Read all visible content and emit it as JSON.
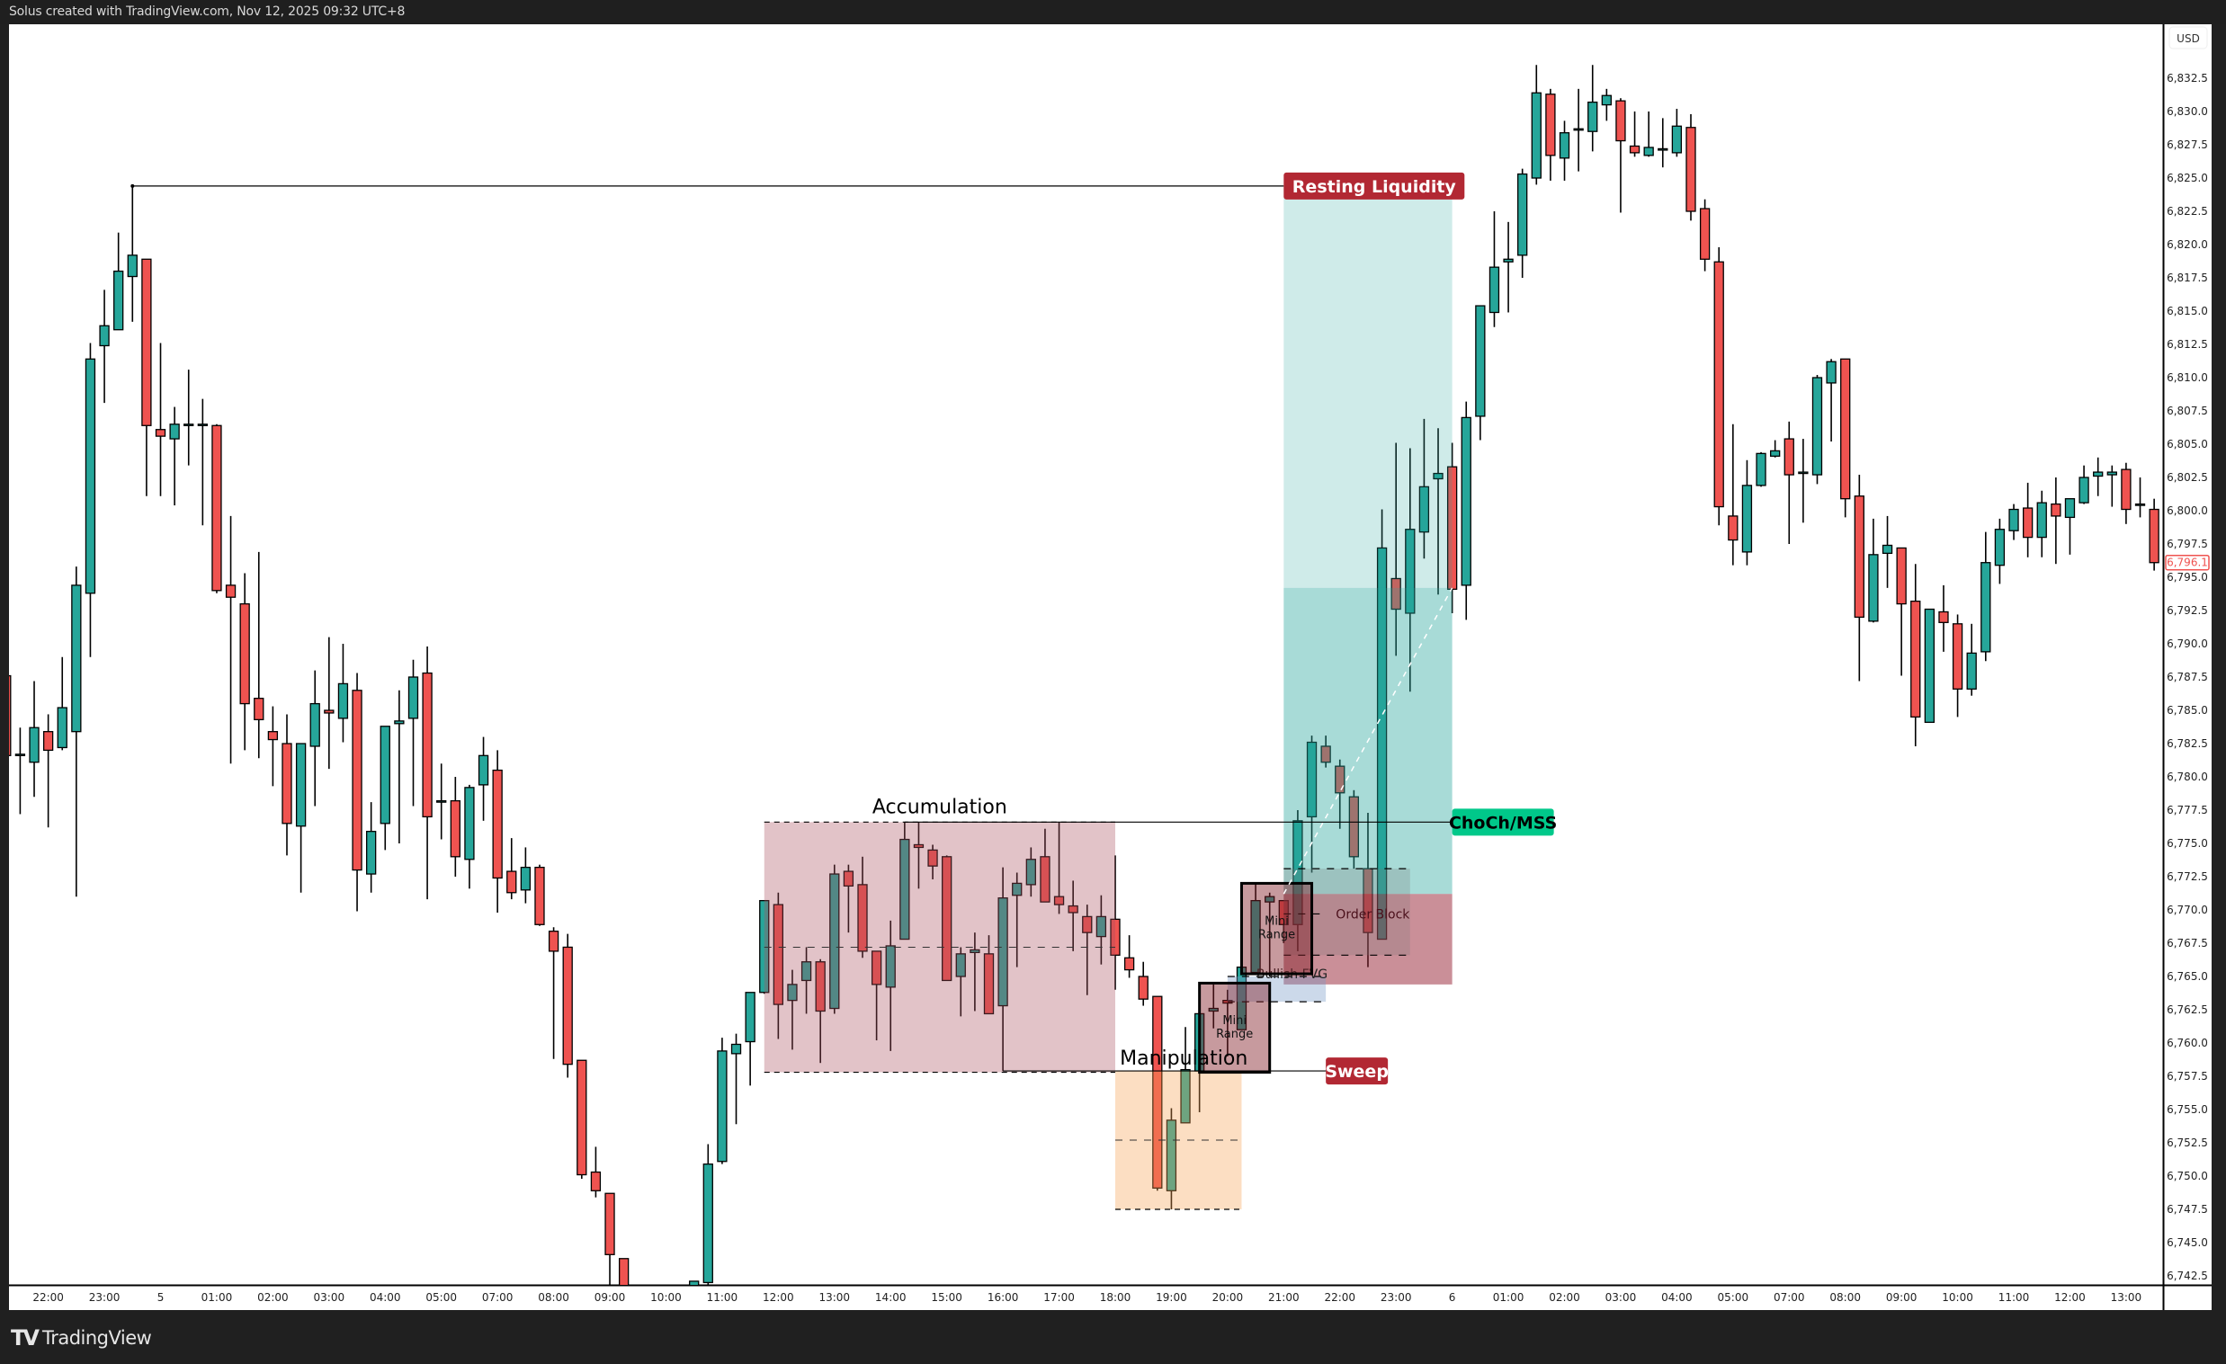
{
  "header": {
    "caption": "Solus created with TradingView.com, Nov 12, 2025 09:32 UTC+8"
  },
  "branding": {
    "logo_mark": "17",
    "logo_text": "TradingView"
  },
  "colors": {
    "up": "#26a69a",
    "down": "#ef5350",
    "wick": "#000000",
    "resting_liquidity": "#b22833",
    "sweep": "#b22833",
    "choch": "#00c88a",
    "accumulation": "#ab505f",
    "manipulation": "#f5a050",
    "target": "#26a69a",
    "order_block": "#962032",
    "mini_range": "#822028",
    "fvg": "#789cc8"
  },
  "chart_data": {
    "type": "candlestick",
    "currency": "USD",
    "ylim": [
      6742.5,
      6832.5
    ],
    "y_ticks": [
      6832.5,
      6830.0,
      6827.5,
      6825.0,
      6822.5,
      6820.0,
      6817.5,
      6815.0,
      6812.5,
      6810.0,
      6807.5,
      6805.0,
      6802.5,
      6800.0,
      6797.5,
      6795.0,
      6792.5,
      6790.0,
      6787.5,
      6785.0,
      6782.5,
      6780.0,
      6777.5,
      6775.0,
      6772.5,
      6770.0,
      6767.5,
      6765.0,
      6762.5,
      6760.0,
      6757.5,
      6755.0,
      6752.5,
      6750.0,
      6747.5,
      6745.0,
      6742.5
    ],
    "last_price": "6,796.1",
    "x_ticks": [
      {
        "label": "22:00",
        "index": 3
      },
      {
        "label": "23:00",
        "index": 7
      },
      {
        "label": "5",
        "index": 11
      },
      {
        "label": "01:00",
        "index": 15
      },
      {
        "label": "02:00",
        "index": 19
      },
      {
        "label": "03:00",
        "index": 23
      },
      {
        "label": "04:00",
        "index": 27
      },
      {
        "label": "05:00",
        "index": 31
      },
      {
        "label": "07:00",
        "index": 35
      },
      {
        "label": "08:00",
        "index": 39
      },
      {
        "label": "09:00",
        "index": 43
      },
      {
        "label": "10:00",
        "index": 47
      },
      {
        "label": "11:00",
        "index": 51
      },
      {
        "label": "12:00",
        "index": 55
      },
      {
        "label": "13:00",
        "index": 59
      },
      {
        "label": "14:00",
        "index": 63
      },
      {
        "label": "15:00",
        "index": 67
      },
      {
        "label": "16:00",
        "index": 71
      },
      {
        "label": "17:00",
        "index": 75
      },
      {
        "label": "18:00",
        "index": 79
      },
      {
        "label": "19:00",
        "index": 83
      },
      {
        "label": "20:00",
        "index": 87
      },
      {
        "label": "21:00",
        "index": 91
      },
      {
        "label": "22:00",
        "index": 95
      },
      {
        "label": "23:00",
        "index": 99
      },
      {
        "label": "6",
        "index": 103
      },
      {
        "label": "01:00",
        "index": 107
      },
      {
        "label": "02:00",
        "index": 111
      },
      {
        "label": "03:00",
        "index": 115
      },
      {
        "label": "04:00",
        "index": 119
      },
      {
        "label": "05:00",
        "index": 123
      },
      {
        "label": "07:00",
        "index": 127
      },
      {
        "label": "08:00",
        "index": 131
      },
      {
        "label": "09:00",
        "index": 135
      },
      {
        "label": "10:00",
        "index": 139
      },
      {
        "label": "11:00",
        "index": 143
      },
      {
        "label": "12:00",
        "index": 147
      },
      {
        "label": "13:00",
        "index": 151
      }
    ],
    "ohlc_fields": [
      "open",
      "high",
      "low",
      "close"
    ],
    "candles": [
      [
        6787.6,
        6787.6,
        6781.6,
        6781.6
      ],
      [
        6781.7,
        6783.7,
        6777.2,
        6781.7
      ],
      [
        6781.1,
        6787.2,
        6778.5,
        6783.7
      ],
      [
        6783.4,
        6784.7,
        6776.2,
        6782.0
      ],
      [
        6782.2,
        6789.0,
        6782.0,
        6785.2
      ],
      [
        6783.4,
        6795.8,
        6771.0,
        6794.4
      ],
      [
        6793.8,
        6812.6,
        6789.0,
        6811.4
      ],
      [
        6812.4,
        6816.6,
        6808.1,
        6813.9
      ],
      [
        6813.6,
        6820.9,
        6813.6,
        6818.0
      ],
      [
        6817.6,
        6824.4,
        6814.2,
        6819.2
      ],
      [
        6818.9,
        6818.9,
        6801.1,
        6806.4
      ],
      [
        6806.1,
        6812.6,
        6801.1,
        6805.6
      ],
      [
        6805.4,
        6807.8,
        6800.4,
        6806.5
      ],
      [
        6806.5,
        6810.6,
        6803.4,
        6806.5
      ],
      [
        6806.5,
        6808.4,
        6798.9,
        6806.5
      ],
      [
        6806.4,
        6806.5,
        6793.8,
        6794.0
      ],
      [
        6794.4,
        6799.6,
        6781.0,
        6793.5
      ],
      [
        6793.0,
        6795.3,
        6782.0,
        6785.5
      ],
      [
        6785.9,
        6796.9,
        6781.4,
        6784.3
      ],
      [
        6783.4,
        6785.3,
        6779.3,
        6782.8
      ],
      [
        6782.5,
        6784.7,
        6774.1,
        6776.5
      ],
      [
        6776.3,
        6782.5,
        6771.3,
        6782.5
      ],
      [
        6782.3,
        6788.0,
        6777.8,
        6785.5
      ],
      [
        6785.0,
        6790.5,
        6780.6,
        6784.8
      ],
      [
        6784.4,
        6790.0,
        6782.6,
        6787.0
      ],
      [
        6786.5,
        6787.8,
        6769.9,
        6773.0
      ],
      [
        6772.7,
        6778.1,
        6771.3,
        6775.9
      ],
      [
        6776.5,
        6783.8,
        6774.5,
        6783.8
      ],
      [
        6784.0,
        6786.5,
        6775.0,
        6784.2
      ],
      [
        6784.4,
        6788.8,
        6777.8,
        6787.5
      ],
      [
        6787.8,
        6789.8,
        6770.8,
        6777.0
      ],
      [
        6778.2,
        6781.0,
        6775.3,
        6778.2
      ],
      [
        6778.2,
        6780.0,
        6772.5,
        6774.0
      ],
      [
        6773.8,
        6779.4,
        6771.6,
        6779.2
      ],
      [
        6779.4,
        6783.0,
        6776.7,
        6781.6
      ],
      [
        6780.5,
        6782.0,
        6769.8,
        6772.4
      ],
      [
        6772.9,
        6775.4,
        6770.8,
        6771.3
      ],
      [
        6771.5,
        6774.7,
        6770.5,
        6773.2
      ],
      [
        6773.2,
        6773.4,
        6768.8,
        6768.9
      ],
      [
        6768.4,
        6768.7,
        6758.8,
        6766.9
      ],
      [
        6767.2,
        6768.2,
        6757.4,
        6758.4
      ],
      [
        6758.7,
        6758.7,
        6749.8,
        6750.1
      ],
      [
        6750.3,
        6752.2,
        6748.4,
        6748.9
      ],
      [
        6748.7,
        6748.7,
        6740.0,
        6744.1
      ],
      [
        6743.8,
        6743.8,
        6738.0,
        6739.0
      ],
      null,
      null,
      null,
      null,
      [
        6738.0,
        6742.1,
        6737.0,
        6742.1
      ],
      [
        6742.0,
        6752.4,
        6741.8,
        6750.9
      ],
      [
        6751.1,
        6760.4,
        6750.9,
        6759.4
      ],
      [
        6759.2,
        6760.7,
        6753.9,
        6759.9
      ],
      [
        6760.1,
        6763.8,
        6756.8,
        6763.8
      ],
      [
        6763.8,
        6770.7,
        6763.7,
        6770.7
      ],
      [
        6770.4,
        6771.3,
        6760.3,
        6762.9
      ],
      [
        6763.2,
        6765.5,
        6759.5,
        6764.4
      ],
      [
        6764.7,
        6767.2,
        6762.2,
        6766.1
      ],
      [
        6766.1,
        6766.3,
        6758.5,
        6762.4
      ],
      [
        6762.6,
        6773.4,
        6762.2,
        6772.7
      ],
      [
        6772.9,
        6773.4,
        6768.3,
        6771.8
      ],
      [
        6771.9,
        6774.0,
        6766.4,
        6766.9
      ],
      [
        6766.9,
        6766.9,
        6760.2,
        6764.4
      ],
      [
        6764.2,
        6769.2,
        6759.4,
        6767.3
      ],
      [
        6767.8,
        6776.6,
        6767.8,
        6775.3
      ],
      [
        6774.9,
        6776.6,
        6771.6,
        6774.7
      ],
      [
        6774.5,
        6774.9,
        6772.3,
        6773.3
      ],
      [
        6774.0,
        6774.1,
        6764.7,
        6764.7
      ],
      [
        6765.0,
        6767.2,
        6762.0,
        6766.7
      ],
      [
        6766.8,
        6768.3,
        6762.4,
        6767.0
      ],
      [
        6766.7,
        6768.1,
        6762.2,
        6762.2
      ],
      [
        6762.8,
        6773.2,
        6757.9,
        6770.9
      ],
      [
        6771.1,
        6772.8,
        6765.7,
        6772.0
      ],
      [
        6771.9,
        6774.7,
        6771.0,
        6773.8
      ],
      [
        6774.0,
        6776.1,
        6770.6,
        6770.6
      ],
      [
        6771.0,
        6776.6,
        6769.7,
        6770.4
      ],
      [
        6770.3,
        6772.2,
        6766.9,
        6769.8
      ],
      [
        6769.5,
        6770.4,
        6763.6,
        6768.3
      ],
      [
        6768.0,
        6771.1,
        6765.9,
        6769.5
      ],
      [
        6769.3,
        6774.1,
        6764.0,
        6766.6
      ],
      [
        6766.4,
        6768.1,
        6764.9,
        6765.5
      ],
      [
        6765.0,
        6766.1,
        6762.8,
        6763.3
      ],
      [
        6763.5,
        6763.5,
        6748.9,
        6749.1
      ],
      [
        6748.9,
        6755.1,
        6747.5,
        6754.2
      ],
      [
        6754.0,
        6761.2,
        6754.0,
        6758.0
      ],
      [
        6757.9,
        6762.2,
        6754.8,
        6762.2
      ],
      [
        6762.4,
        6764.4,
        6761.1,
        6762.6
      ],
      [
        6763.2,
        6764.0,
        6759.0,
        6763.0
      ],
      [
        6761.0,
        6765.7,
        6761.0,
        6765.7
      ],
      [
        6765.3,
        6772.0,
        6765.2,
        6770.7
      ],
      [
        6770.6,
        6771.3,
        6765.0,
        6771.0
      ],
      [
        6770.7,
        6770.7,
        6767.5,
        6768.9
      ],
      [
        6768.9,
        6777.5,
        6766.9,
        6776.7
      ],
      [
        6777.0,
        6783.1,
        6772.8,
        6782.6
      ],
      [
        6782.3,
        6783.1,
        6780.7,
        6781.1
      ],
      [
        6780.8,
        6781.3,
        6776.1,
        6778.8
      ],
      [
        6778.5,
        6779.0,
        6773.1,
        6774.0
      ],
      [
        6773.1,
        6777.3,
        6765.7,
        6768.3
      ],
      [
        6767.8,
        6800.1,
        6767.8,
        6797.2
      ],
      [
        6794.9,
        6805.1,
        6789.1,
        6792.6
      ],
      [
        6792.3,
        6804.7,
        6786.4,
        6798.6
      ],
      [
        6798.4,
        6806.9,
        6796.4,
        6801.8
      ],
      [
        6802.4,
        6806.2,
        6793.7,
        6802.8
      ],
      [
        6803.3,
        6805.1,
        6792.3,
        6794.1
      ],
      [
        6794.4,
        6808.2,
        6791.8,
        6807.0
      ],
      [
        6807.1,
        6815.4,
        6805.3,
        6815.4
      ],
      [
        6814.9,
        6822.5,
        6813.8,
        6818.3
      ],
      [
        6818.7,
        6821.7,
        6814.9,
        6818.9
      ],
      [
        6819.2,
        6825.7,
        6817.5,
        6825.3
      ],
      [
        6825.0,
        6833.5,
        6824.5,
        6831.4
      ],
      [
        6831.3,
        6831.7,
        6824.8,
        6826.7
      ],
      [
        6826.5,
        6829.3,
        6824.8,
        6828.4
      ],
      [
        6828.7,
        6831.7,
        6825.5,
        6828.7
      ],
      [
        6828.5,
        6833.5,
        6827.0,
        6830.7
      ],
      [
        6830.5,
        6831.7,
        6829.3,
        6831.2
      ],
      [
        6830.8,
        6831.0,
        6822.4,
        6827.8
      ],
      [
        6827.4,
        6830.0,
        6826.6,
        6826.9
      ],
      [
        6826.7,
        6830.0,
        6826.6,
        6827.3
      ],
      [
        6827.2,
        6829.5,
        6825.8,
        6827.2
      ],
      [
        6826.9,
        6830.2,
        6826.6,
        6828.9
      ],
      [
        6828.8,
        6829.8,
        6821.8,
        6822.5
      ],
      [
        6822.7,
        6823.4,
        6818.0,
        6818.9
      ],
      [
        6818.7,
        6819.8,
        6798.9,
        6800.3
      ],
      [
        6799.6,
        6806.5,
        6795.9,
        6797.8
      ],
      [
        6796.9,
        6803.8,
        6795.9,
        6801.9
      ],
      [
        6801.9,
        6804.4,
        6801.8,
        6804.3
      ],
      [
        6804.1,
        6805.3,
        6804.0,
        6804.5
      ],
      [
        6805.4,
        6806.7,
        6797.5,
        6802.7
      ],
      [
        6802.9,
        6805.4,
        6799.1,
        6802.9
      ],
      [
        6802.7,
        6810.2,
        6802.0,
        6810.0
      ],
      [
        6809.6,
        6811.4,
        6805.2,
        6811.2
      ],
      [
        6811.4,
        6811.4,
        6799.5,
        6800.9
      ],
      [
        6801.1,
        6802.7,
        6787.2,
        6792.0
      ],
      [
        6791.7,
        6799.4,
        6791.6,
        6796.7
      ],
      [
        6796.8,
        6799.6,
        6794.2,
        6797.4
      ],
      [
        6797.2,
        6797.2,
        6787.6,
        6793.0
      ],
      [
        6793.2,
        6796.0,
        6782.3,
        6784.5
      ],
      [
        6784.1,
        6792.6,
        6784.1,
        6792.6
      ],
      [
        6792.4,
        6794.4,
        6789.4,
        6791.6
      ],
      [
        6791.5,
        6792.2,
        6784.5,
        6786.6
      ],
      [
        6786.6,
        6791.5,
        6786.1,
        6789.3
      ],
      [
        6789.4,
        6798.4,
        6788.7,
        6796.1
      ],
      [
        6795.9,
        6799.4,
        6794.5,
        6798.6
      ],
      [
        6798.5,
        6800.5,
        6797.8,
        6800.1
      ],
      [
        6800.2,
        6802.1,
        6796.5,
        6798.0
      ],
      [
        6798.0,
        6801.5,
        6796.5,
        6800.6
      ],
      [
        6800.5,
        6802.5,
        6796.0,
        6799.6
      ],
      [
        6799.5,
        6800.9,
        6796.7,
        6800.9
      ],
      [
        6800.6,
        6803.4,
        6800.5,
        6802.5
      ],
      [
        6802.6,
        6804.0,
        6801.1,
        6802.9
      ],
      [
        6802.7,
        6803.4,
        6800.3,
        6802.9
      ],
      [
        6803.1,
        6803.6,
        6799.0,
        6800.1
      ],
      [
        6800.5,
        6802.5,
        6799.5,
        6800.5
      ],
      [
        6800.1,
        6800.9,
        6795.5,
        6796.1
      ]
    ],
    "annotations": {
      "accumulation": {
        "label": "Accumulation",
        "from": 54,
        "to": 79,
        "top": 6776.6,
        "bottom": 6757.8,
        "mid": 6767.2
      },
      "manipulation": {
        "label": "Manipulation",
        "from": 79,
        "to": 88,
        "top": 6757.9,
        "bottom": 6747.5,
        "mid": 6752.7
      },
      "mini_ranges": [
        {
          "label": [
            "Mini",
            "Range"
          ],
          "from": 85,
          "to": 90,
          "top": 6764.5,
          "bottom": 6757.8
        },
        {
          "label": [
            "Mini",
            "Range"
          ],
          "from": 88,
          "to": 93,
          "top": 6772.0,
          "bottom": 6765.2
        }
      ],
      "bullish_fvg": {
        "label": "Bullish FVG",
        "from": 87,
        "to": 94,
        "top": 6765.0,
        "bottom": 6763.1
      },
      "order_block": {
        "label": "Order Block",
        "from": 91,
        "to": 103,
        "top": 6771.2,
        "bottom": 6764.4,
        "inner_from": 91,
        "inner_to": 100,
        "inner_top": 6773.1,
        "inner_bottom": 6766.6,
        "line": 6769.7
      },
      "target_zone": {
        "from": 91,
        "to": 103,
        "top": 6824.4,
        "split": 6794.2,
        "bottom": 6771.2
      },
      "resting_liquidity": {
        "label": "Resting Liquidity",
        "from": 9,
        "to": 91,
        "price": 6824.4
      },
      "choch": {
        "label": "ChoCh/MSS",
        "from": 64,
        "to": 103,
        "price": 6776.6
      },
      "sweep": {
        "label": "Sweep",
        "from": 71,
        "to": 94,
        "price": 6757.9
      },
      "projection": {
        "from": 91,
        "to": 103,
        "start": 6771.2,
        "end": 6794.2
      }
    }
  }
}
